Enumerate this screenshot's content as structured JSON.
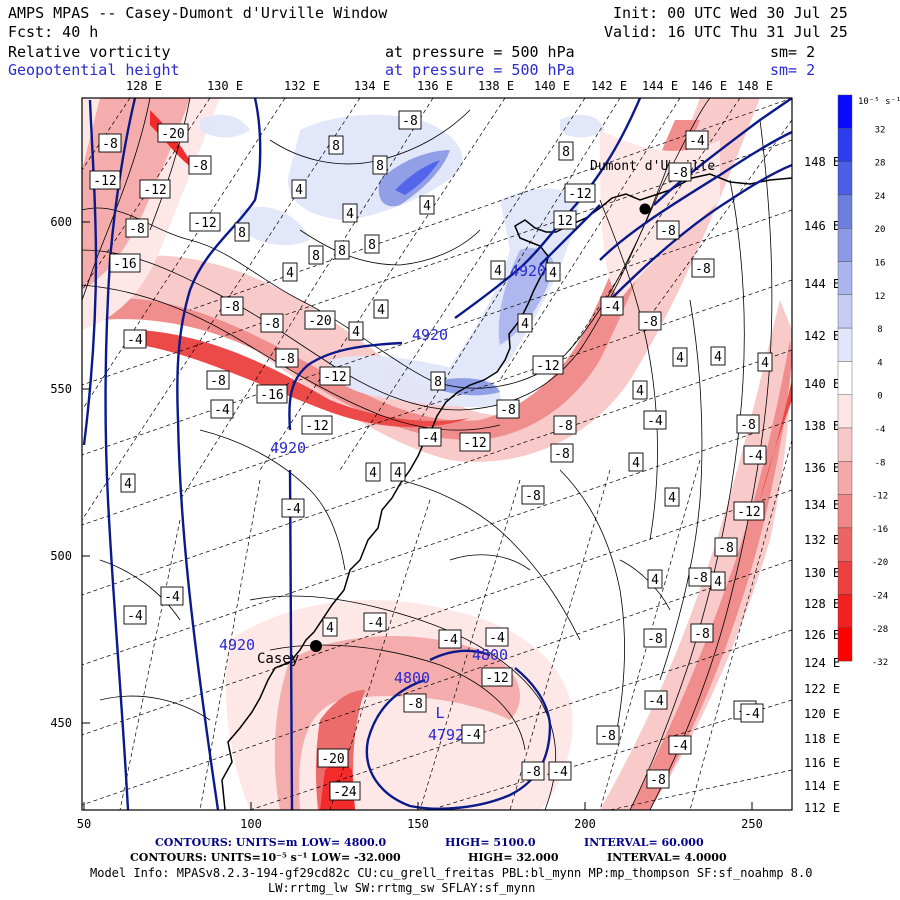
{
  "header": {
    "title": "AMPS MPAS -- Casey-Dumont d'Urville Window",
    "init": "Init: 00 UTC Wed 30 Jul 25",
    "fcst": "Fcst:   40 h",
    "valid": "Valid: 16 UTC Thu 31 Jul 25",
    "field1": {
      "name": "Relative vorticity",
      "level": "at pressure =  500 hPa",
      "sm": "sm= 2"
    },
    "field2": {
      "name": "Geopotential height",
      "level": "at pressure =  500 hPa",
      "sm": "sm= 2"
    }
  },
  "map": {
    "top_lon_labels": [
      "128 E",
      "130 E",
      "132 E",
      "134 E",
      "136 E",
      "138 E",
      "140 E",
      "142 E",
      "144 E",
      "146 E",
      "148 E"
    ],
    "right_lon_labels": [
      "148 E",
      "146 E",
      "144 E",
      "142 E",
      "140 E",
      "138 E",
      "136 E",
      "134 E",
      "132 E",
      "130 E",
      "128 E",
      "126 E",
      "124 E",
      "122 E",
      "120 E",
      "118 E",
      "116 E",
      "114 E",
      "112 E"
    ],
    "left_y_labels": [
      "600",
      "550",
      "500",
      "450"
    ],
    "bottom_x_labels": [
      "50",
      "100",
      "150",
      "200",
      "250"
    ],
    "stations": [
      "Dumont d'Urville",
      "Casey"
    ],
    "height_labels": [
      "4920",
      "4920",
      "4920",
      "4920",
      "4800",
      "4800"
    ],
    "low_center": {
      "symbol": "L",
      "value": "4792"
    },
    "vort_labels": [
      "-20",
      "-8",
      "-8",
      "-12",
      "-12",
      "-12",
      "-8",
      "-16",
      "-8",
      "-8",
      "-20",
      "-8",
      "-12",
      "-16",
      "-4",
      "-4",
      "-12",
      "-8",
      "-8",
      "-12",
      "-8",
      "-4",
      "-8",
      "-8",
      "-4",
      "-8",
      "-8",
      "-12",
      "-8",
      "-12",
      "-8",
      "-8",
      "-4",
      "-4",
      "-8",
      "-4",
      "-12",
      "-8",
      "-8",
      "-8",
      "-4",
      "-4",
      "-4",
      "-8",
      "-4",
      "-8",
      "-4",
      "-8",
      "-20",
      "-24",
      "-4",
      "-4",
      "-4",
      "-8",
      "-8",
      "-4",
      "-12",
      "-4",
      "-8",
      "-4",
      "4",
      "4",
      "4",
      "4",
      "4",
      "4",
      "4",
      "4",
      "4",
      "4",
      "8",
      "8",
      "8",
      "8",
      "8",
      "8",
      "8",
      "8",
      "12",
      "4",
      "4",
      "4",
      "4",
      "4",
      "4",
      "4",
      "4",
      "4",
      "4",
      "4"
    ]
  },
  "colorbar": {
    "unit": "10⁻⁵ s⁻¹",
    "labels": [
      "32",
      "28",
      "24",
      "20",
      "16",
      "12",
      "8",
      "4",
      "0",
      "-4",
      "-8",
      "-12",
      "-16",
      "-20",
      "-24",
      "-28",
      "-32"
    ],
    "colors": [
      "#0a0aff",
      "#2c3cf0",
      "#4a5ee8",
      "#6c7ede",
      "#8c9ae6",
      "#aab4ee",
      "#c6ccf4",
      "#e2e6fa",
      "#ffffff",
      "#fde6e6",
      "#f8c8c8",
      "#f4a8a8",
      "#f08888",
      "#ec6464",
      "#ec4040",
      "#f42020",
      "#ff0000"
    ]
  },
  "footer": {
    "line1_a": "CONTOURS:  UNITS=m  LOW=  4800.0",
    "line1_b": "HIGH=  5100.0",
    "line1_c": "INTERVAL=   60.000",
    "line2_a": "CONTOURS:  UNITS=10⁻⁵ s⁻¹  LOW=  -32.000",
    "line2_b": "HIGH=   32.000",
    "line2_c": "INTERVAL=   4.0000",
    "model_info_1": "Model Info: MPASv8.2.3-194-gf29cd82c CU:cu_grell_freitas PBL:bl_mynn MP:mp_thompson SF:sf_noahmp 8.0",
    "model_info_2": "LW:rrtmg_lw SW:rrtmg_sw SFLAY:sf_mynn"
  }
}
